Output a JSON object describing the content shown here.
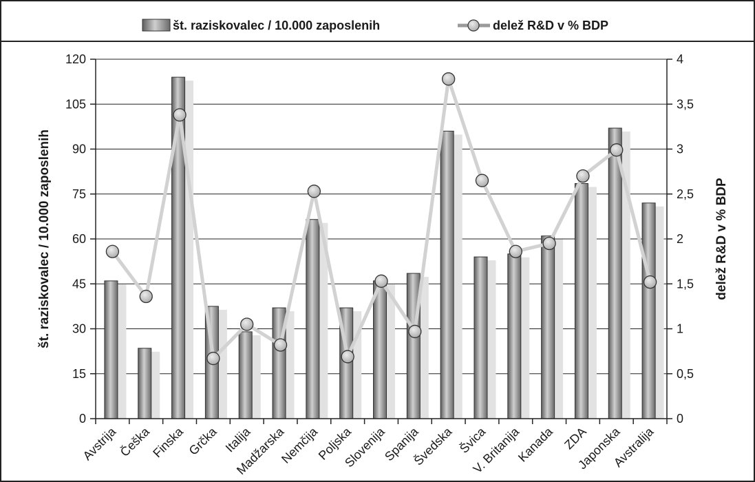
{
  "chart_data": {
    "type": "bar",
    "categories": [
      "Avstrija",
      "Češka",
      "Finska",
      "Grčka",
      "Italija",
      "Madžarska",
      "Nemčija",
      "Poljska",
      "Slovenija",
      "Spanija",
      "Švedska",
      "Švica",
      "V. Britanija",
      "Kanada",
      "ZDA",
      "Japonska",
      "Avstralija"
    ],
    "series": [
      {
        "name": "št. raziskovalec / 10.000 zaposlenih",
        "type": "bar",
        "axis": "left",
        "values": [
          46,
          23.5,
          114,
          37.5,
          29,
          37,
          66.5,
          37,
          46,
          48.5,
          96,
          54,
          55,
          61,
          78.5,
          97,
          72
        ]
      },
      {
        "name": "delež R&D v % BDP",
        "type": "line",
        "axis": "right",
        "values": [
          1.86,
          1.36,
          3.38,
          0.67,
          1.05,
          0.82,
          2.53,
          0.69,
          1.53,
          0.97,
          3.78,
          2.65,
          1.86,
          1.95,
          2.7,
          2.99,
          1.52
        ]
      }
    ],
    "ylabel": "št. raziskovalec / 10.000 zaposlenih",
    "y2label": "delež R&D v % BDP",
    "ylim": [
      0,
      120
    ],
    "y2lim": [
      0,
      4
    ],
    "yticks": [
      "0",
      "15",
      "30",
      "45",
      "60",
      "75",
      "90",
      "105",
      "120"
    ],
    "y2ticks": [
      "0",
      "0,5",
      "1",
      "1,5",
      "2",
      "2,5",
      "3",
      "3,5",
      "4"
    ],
    "grid": true,
    "legend_position": "top",
    "colors": {
      "bar": "#9a9a9a",
      "bar_shadow": "#e2e2e2",
      "line": "#d2d2d2",
      "marker_fill": "#c8c8c8",
      "marker_stroke": "#333333"
    }
  }
}
